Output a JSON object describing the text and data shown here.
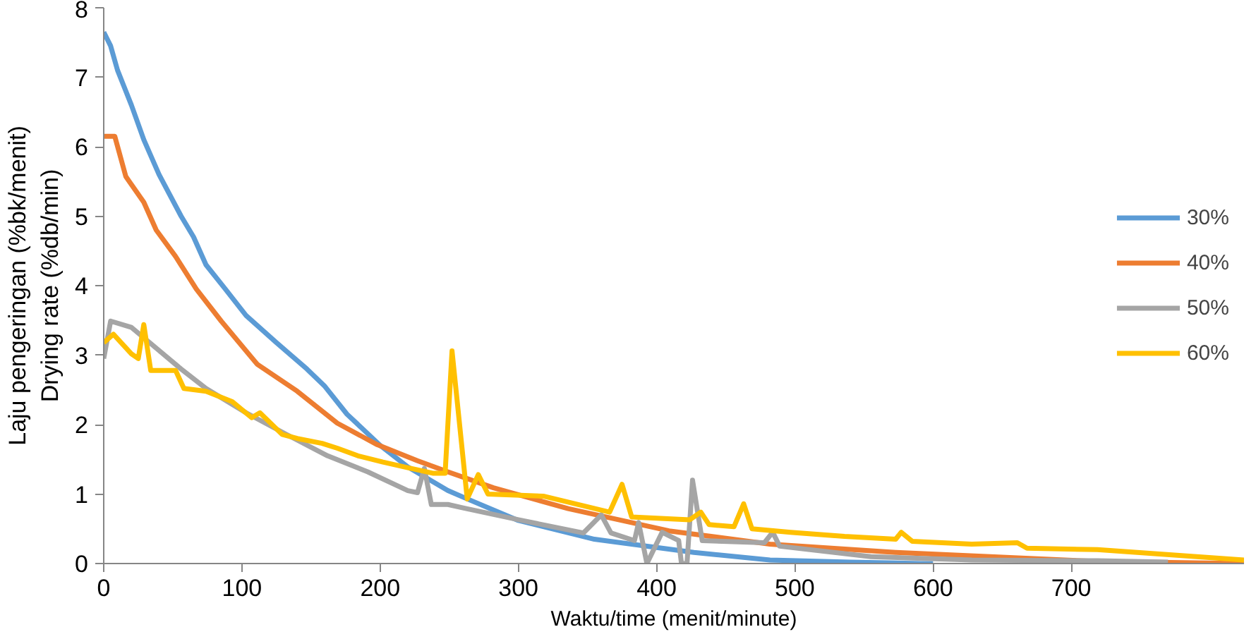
{
  "chart_data": {
    "type": "line",
    "xlabel": "Waktu/time (menit/minute)",
    "ylabel": "Laju pengeringan (%bk/menit)\nDrying rate (%db/min)",
    "xlim": [
      0,
      825
    ],
    "ylim": [
      0,
      8
    ],
    "xticks": [
      0,
      100,
      200,
      300,
      400,
      500,
      600,
      700
    ],
    "yticks": [
      0,
      1,
      2,
      3,
      4,
      5,
      6,
      7,
      8
    ],
    "grid": false,
    "legend": "right",
    "marker": "none",
    "line_style": "solid",
    "series": [
      {
        "name": "30%",
        "color": "#5b9bd5",
        "x": [
          0,
          5,
          10,
          15,
          20,
          29,
          40,
          56,
          65,
          74,
          88,
          103,
          125,
          147,
          160,
          176,
          200,
          220,
          249,
          263,
          300,
          355,
          427,
          482,
          540,
          591,
          600
        ],
        "values": [
          7.65,
          7.45,
          7.1,
          6.85,
          6.6,
          6.1,
          5.6,
          5.0,
          4.7,
          4.3,
          3.95,
          3.57,
          3.18,
          2.8,
          2.55,
          2.15,
          1.7,
          1.39,
          1.05,
          0.93,
          0.62,
          0.35,
          0.16,
          0.05,
          0.02,
          0,
          0
        ]
      },
      {
        "name": "40%",
        "color": "#ed7d31",
        "x": [
          0,
          8,
          16,
          29,
          38,
          52,
          67,
          85,
          111,
          140,
          169,
          198,
          227,
          249,
          282,
          336,
          409,
          482,
          573,
          719,
          825
        ],
        "values": [
          6.15,
          6.15,
          5.57,
          5.2,
          4.8,
          4.42,
          3.95,
          3.49,
          2.87,
          2.48,
          2.02,
          1.71,
          1.48,
          1.32,
          1.09,
          0.79,
          0.47,
          0.28,
          0.16,
          0.03,
          0.0
        ]
      },
      {
        "name": "50%",
        "color": "#a5a5a5",
        "x": [
          0,
          5,
          20,
          38,
          56,
          74,
          103,
          132,
          162,
          191,
          220,
          227,
          232,
          237,
          249,
          260,
          300,
          347,
          360,
          367,
          384,
          387,
          393,
          404,
          416,
          418,
          422,
          426,
          433,
          478,
          484,
          489,
          555,
          628,
          719,
          770
        ],
        "values": [
          2.95,
          3.49,
          3.4,
          3.1,
          2.8,
          2.52,
          2.17,
          1.86,
          1.55,
          1.32,
          1.05,
          1.02,
          1.37,
          0.85,
          0.85,
          0.8,
          0.63,
          0.44,
          0.7,
          0.44,
          0.33,
          0.59,
          0,
          0.45,
          0.33,
          0,
          0,
          1.2,
          0.33,
          0.3,
          0.45,
          0.25,
          0.1,
          0.05,
          0.04,
          0.02
        ]
      },
      {
        "name": "60%",
        "color": "#ffc000",
        "x": [
          0,
          7,
          20,
          25,
          29,
          34,
          52,
          58,
          74,
          93,
          107,
          113,
          129,
          140,
          158,
          169,
          184,
          202,
          220,
          238,
          247,
          252,
          263,
          271,
          278,
          318,
          366,
          375,
          382,
          424,
          432,
          438,
          456,
          463,
          469,
          497,
          536,
          573,
          577,
          585,
          628,
          661,
          668,
          719,
          825
        ],
        "values": [
          3.18,
          3.3,
          3.02,
          2.95,
          3.44,
          2.78,
          2.78,
          2.52,
          2.48,
          2.33,
          2.1,
          2.17,
          1.86,
          1.8,
          1.73,
          1.66,
          1.55,
          1.46,
          1.38,
          1.3,
          1.3,
          3.06,
          0.93,
          1.28,
          1.0,
          0.97,
          0.74,
          1.14,
          0.67,
          0.63,
          0.74,
          0.56,
          0.53,
          0.86,
          0.5,
          0.45,
          0.39,
          0.35,
          0.45,
          0.32,
          0.28,
          0.3,
          0.22,
          0.2,
          0.05
        ]
      }
    ]
  }
}
